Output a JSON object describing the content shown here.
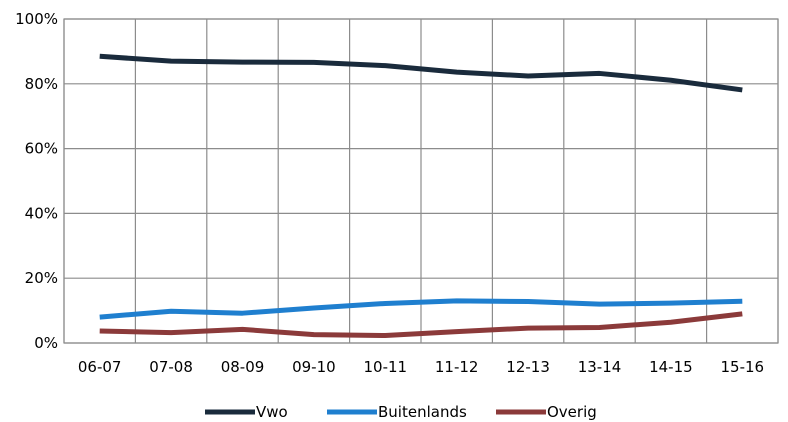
{
  "chart_data": {
    "type": "line",
    "title": "",
    "xlabel": "",
    "ylabel": "",
    "categories": [
      "06-07",
      "07-08",
      "08-09",
      "09-10",
      "10-11",
      "11-12",
      "12-13",
      "13-14",
      "14-15",
      "15-16"
    ],
    "ylim": [
      0,
      100
    ],
    "yticks": [
      0,
      20,
      40,
      60,
      80,
      100
    ],
    "ytick_labels": [
      "0%",
      "20%",
      "40%",
      "60%",
      "80%",
      "100%"
    ],
    "grid": true,
    "legend_position": "bottom",
    "series": [
      {
        "name": "Vwo",
        "color": "#1a2b3c",
        "values": [
          88.5,
          87.0,
          86.7,
          86.6,
          85.6,
          83.6,
          82.4,
          83.2,
          81.1,
          78.1
        ]
      },
      {
        "name": "Buitenlands",
        "color": "#1f7fcf",
        "values": [
          8.0,
          9.8,
          9.2,
          10.8,
          12.2,
          13.0,
          12.8,
          12.0,
          12.3,
          12.9
        ]
      },
      {
        "name": "Overig",
        "color": "#8b3a3a",
        "values": [
          3.7,
          3.2,
          4.2,
          2.6,
          2.3,
          3.5,
          4.6,
          4.8,
          6.4,
          9.0
        ]
      }
    ]
  }
}
